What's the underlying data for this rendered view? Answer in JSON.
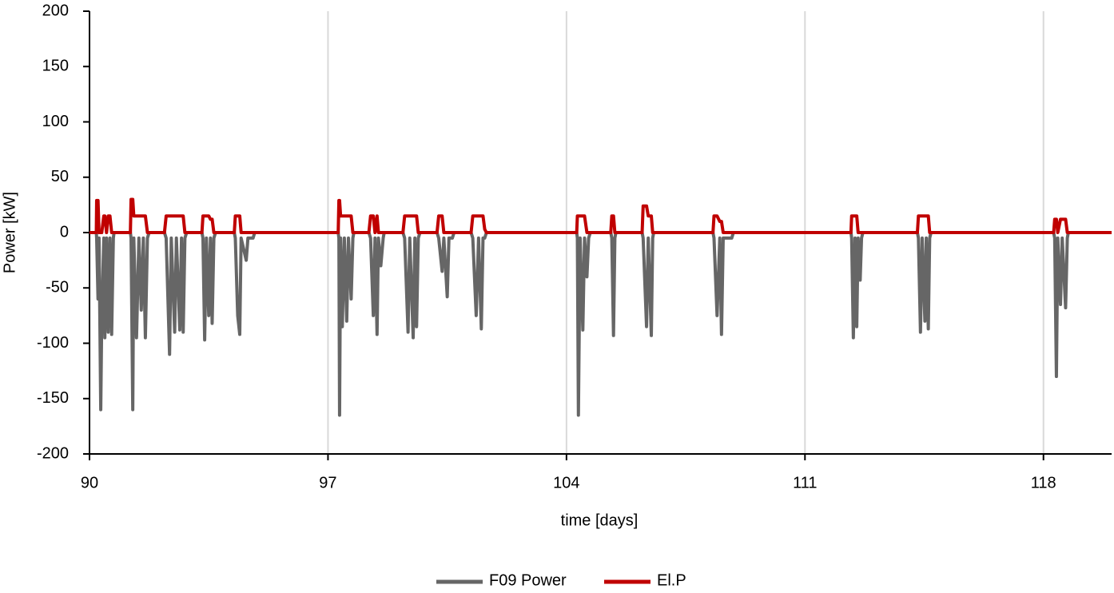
{
  "chart_data": {
    "type": "line",
    "x_label": "time [days]",
    "y_label": "Power [kW]",
    "xlim": [
      90,
      120
    ],
    "xticks": [
      90,
      97,
      104,
      111,
      118
    ],
    "ylim": [
      -200,
      200
    ],
    "yticks": [
      -200,
      -150,
      -100,
      -50,
      0,
      50,
      100,
      150,
      200
    ],
    "grid": "x",
    "legend": "bottom",
    "x": [
      90,
      90.2,
      90.21,
      90.25,
      90.28,
      90.33,
      90.36,
      90.42,
      90.45,
      90.5,
      90.55,
      90.6,
      90.65,
      90.7,
      90.72,
      91.2,
      91.22,
      91.27,
      91.3,
      91.38,
      91.45,
      91.52,
      91.58,
      91.64,
      91.7,
      91.75,
      92.2,
      92.25,
      92.35,
      92.4,
      92.5,
      92.55,
      92.65,
      92.7,
      92.75,
      92.8,
      92.85,
      93.3,
      93.33,
      93.38,
      93.43,
      93.5,
      93.55,
      93.6,
      93.65,
      93.7,
      94.25,
      94.28,
      94.35,
      94.41,
      94.45,
      94.6,
      94.65,
      94.8,
      94.85,
      97.3,
      97.32,
      97.34,
      97.37,
      97.42,
      97.48,
      97.55,
      97.6,
      97.68,
      97.73,
      97.76,
      98.2,
      98.25,
      98.33,
      98.38,
      98.44,
      98.48,
      98.55,
      98.62,
      98.65,
      99.2,
      99.25,
      99.35,
      99.4,
      99.5,
      99.55,
      99.6,
      99.65,
      99.7,
      100.2,
      100.25,
      100.35,
      100.4,
      100.5,
      100.55,
      100.65,
      100.7,
      101.2,
      101.25,
      101.35,
      101.42,
      101.5,
      101.55,
      101.6,
      101.65,
      104.3,
      104.32,
      104.35,
      104.4,
      104.48,
      104.53,
      104.6,
      104.65,
      104.7,
      105.3,
      105.33,
      105.38,
      105.42,
      105.45,
      106.22,
      106.25,
      106.35,
      106.4,
      106.49,
      106.53,
      106.56,
      108.3,
      108.33,
      108.42,
      108.5,
      108.55,
      108.6,
      108.85,
      108.9,
      112.35,
      112.37,
      112.42,
      112.47,
      112.52,
      112.56,
      112.62,
      112.66,
      112.7,
      114.3,
      114.33,
      114.39,
      114.44,
      114.52,
      114.56,
      114.62,
      114.66,
      114.7,
      118.3,
      118.33,
      118.38,
      118.42,
      118.5,
      118.55,
      118.65,
      118.7,
      118.73,
      120
    ],
    "series": [
      {
        "name": "F09 Power",
        "color": "#666666",
        "values": [
          0,
          0,
          -5,
          -60,
          -5,
          -160,
          -75,
          -5,
          -95,
          -5,
          -90,
          -5,
          -92,
          -5,
          0,
          0,
          -5,
          -160,
          -5,
          -95,
          -5,
          -70,
          -5,
          -95,
          -5,
          0,
          0,
          -5,
          -110,
          -5,
          -90,
          -5,
          -88,
          -5,
          -90,
          -5,
          0,
          0,
          -5,
          -97,
          -5,
          -75,
          -5,
          -82,
          -5,
          0,
          0,
          -5,
          -75,
          -92,
          -5,
          -25,
          -5,
          -5,
          0,
          0,
          -5,
          -165,
          -5,
          -85,
          -5,
          -80,
          -5,
          -60,
          -5,
          0,
          0,
          -5,
          -75,
          -5,
          -92,
          -5,
          -30,
          -5,
          0,
          0,
          -5,
          -90,
          -5,
          -95,
          -5,
          -85,
          -5,
          0,
          0,
          -5,
          -35,
          -5,
          -58,
          -5,
          -5,
          0,
          0,
          -5,
          -75,
          -5,
          -87,
          -5,
          -5,
          0,
          0,
          -5,
          -165,
          -5,
          -88,
          -5,
          -40,
          -5,
          0,
          0,
          -5,
          -93,
          -5,
          0,
          0,
          -5,
          -85,
          -5,
          -93,
          -5,
          0,
          0,
          -5,
          -75,
          -5,
          -92,
          -5,
          -5,
          0,
          0,
          -5,
          -95,
          -5,
          -85,
          -5,
          -43,
          -5,
          0,
          0,
          -5,
          -90,
          -5,
          -80,
          -5,
          -87,
          -5,
          0,
          0,
          -5,
          -130,
          -5,
          -65,
          -5,
          -68,
          -5,
          0,
          0
        ]
      },
      {
        "name": "El.P",
        "color": "#c00000",
        "values": [
          0,
          0,
          29,
          29,
          0,
          0,
          0,
          15,
          15,
          0,
          15,
          15,
          0,
          0,
          0,
          0,
          30,
          30,
          15,
          15,
          15,
          15,
          15,
          15,
          0,
          0,
          0,
          15,
          15,
          15,
          15,
          15,
          15,
          15,
          15,
          0,
          0,
          0,
          15,
          15,
          15,
          15,
          12,
          12,
          0,
          0,
          0,
          15,
          15,
          15,
          0,
          0,
          0,
          0,
          0,
          0,
          29,
          29,
          15,
          15,
          15,
          15,
          15,
          15,
          0,
          0,
          0,
          15,
          15,
          0,
          15,
          0,
          0,
          0,
          0,
          0,
          15,
          15,
          15,
          15,
          15,
          15,
          0,
          0,
          0,
          15,
          15,
          0,
          0,
          0,
          0,
          0,
          0,
          15,
          15,
          15,
          15,
          15,
          3,
          0,
          0,
          15,
          15,
          15,
          15,
          15,
          0,
          0,
          0,
          0,
          15,
          15,
          0,
          0,
          0,
          24,
          24,
          15,
          15,
          0,
          0,
          0,
          15,
          15,
          10,
          10,
          0,
          0,
          0,
          0,
          15,
          15,
          15,
          15,
          0,
          0,
          0,
          0,
          0,
          15,
          15,
          15,
          15,
          15,
          15,
          0,
          0,
          0,
          12,
          12,
          0,
          12,
          12,
          12,
          0,
          0,
          0
        ]
      }
    ]
  }
}
